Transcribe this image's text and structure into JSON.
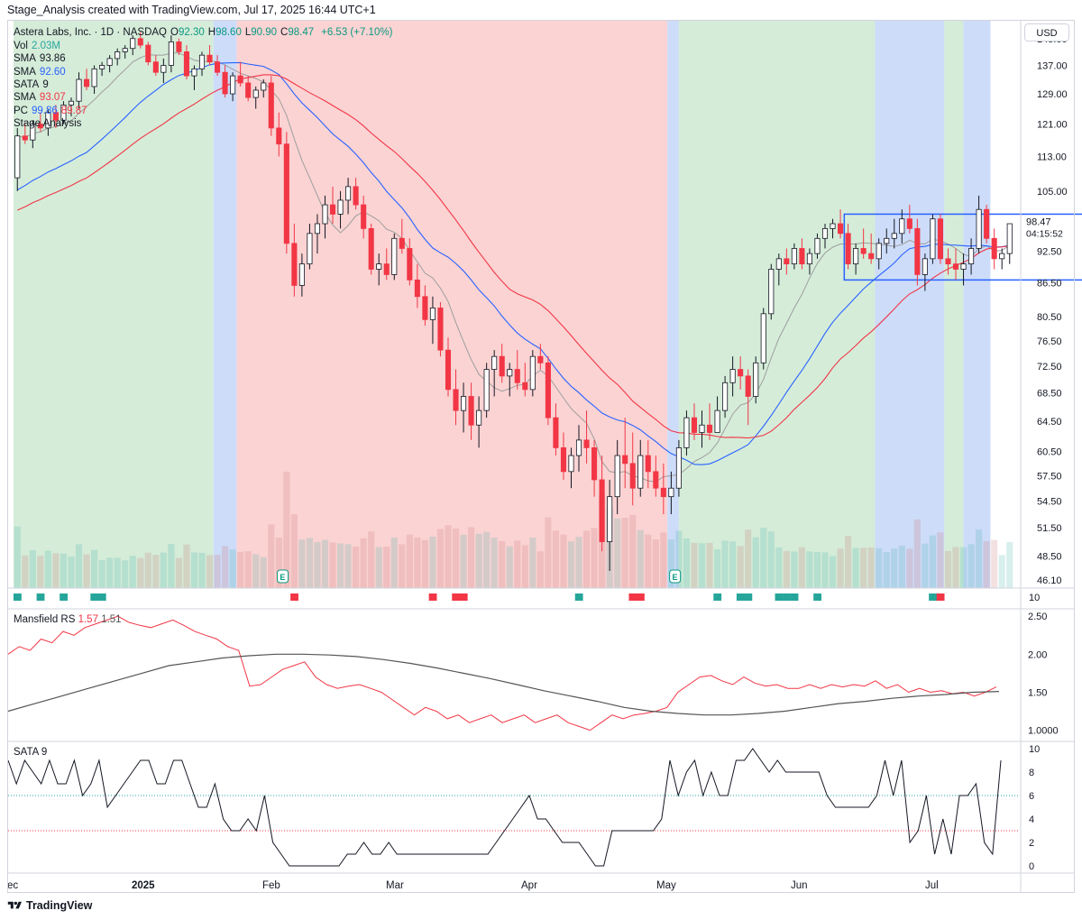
{
  "header": {
    "attribution": "Stage_Analysis created with TradingView.com, Jul 17, 2025 16:44 UTC+1"
  },
  "currency_button": "USD",
  "footer": {
    "brand": "TradingView"
  },
  "legend": {
    "symbol": "Astera Labs, Inc. · 1D · NASDAQ",
    "ohlc": [
      {
        "k": "O",
        "v": "92.30"
      },
      {
        "k": "H",
        "v": "98.60"
      },
      {
        "k": "L",
        "v": "90.90"
      },
      {
        "k": "C",
        "v": "98.47"
      }
    ],
    "change": "+6.53 (+7.10%)",
    "rows": [
      {
        "name": "Vol",
        "values": [
          "2.03M"
        ],
        "colors": [
          "#26a69a"
        ]
      },
      {
        "name": "SMA",
        "values": [
          "93.86"
        ],
        "colors": [
          "#131722"
        ]
      },
      {
        "name": "SMA",
        "values": [
          "92.60"
        ],
        "colors": [
          "#2962ff"
        ]
      },
      {
        "name": "SATA",
        "values": [
          "9"
        ],
        "colors": [
          "#131722"
        ]
      },
      {
        "name": "SMA",
        "values": [
          "93.07"
        ],
        "colors": [
          "#f23645"
        ]
      },
      {
        "name": "PC",
        "values": [
          "99.86",
          "89.87"
        ],
        "colors": [
          "#2962ff",
          "#f23645"
        ]
      },
      {
        "name": "Stage Analysis",
        "values": [],
        "colors": []
      }
    ],
    "earnings_marker": "E"
  },
  "colors": {
    "bull": "#ffffff",
    "bear": "#f23645",
    "wick": "#131722",
    "stage_green": "#d5ecd9",
    "stage_red": "#fbd3d3",
    "stage_blue": "#cddcf9",
    "sma_gray": "#9e9e9e",
    "sma_blue": "#2962ff",
    "sma_red": "#f23645",
    "rs_line": "#f23645",
    "rs_ma": "#555555",
    "box": "#2962ff"
  },
  "chart_data": [
    {
      "type": "candlestick",
      "name": "ALAB 1D",
      "x_axis_labels": [
        "ec",
        "2025",
        "Feb",
        "Mar",
        "Apr",
        "May",
        "Jun",
        "Jul"
      ],
      "y_axis_labels": [
        "145.00",
        "137.00",
        "129.00",
        "121.00",
        "113.00",
        "105.00",
        "98.47",
        "92.50",
        "86.50",
        "80.50",
        "76.50",
        "72.50",
        "68.50",
        "64.50",
        "60.50",
        "57.50",
        "54.50",
        "51.50",
        "48.50",
        "46.10"
      ],
      "last_price": "98.47",
      "countdown": "04:15:52",
      "ylim": [
        45,
        150
      ],
      "scale": "log",
      "candles": [
        [
          108,
          120,
          105,
          118
        ],
        [
          118,
          121,
          116,
          117
        ],
        [
          117,
          122,
          115,
          121
        ],
        [
          121,
          124,
          119,
          120
        ],
        [
          120,
          125,
          118,
          124
        ],
        [
          124,
          126,
          120,
          122
        ],
        [
          122,
          127,
          121,
          126
        ],
        [
          126,
          128,
          123,
          127
        ],
        [
          127,
          135,
          125,
          133
        ],
        [
          133,
          136,
          130,
          131
        ],
        [
          131,
          137,
          129,
          136
        ],
        [
          136,
          138,
          134,
          137
        ],
        [
          137,
          140,
          135,
          139
        ],
        [
          139,
          142,
          137,
          141
        ],
        [
          141,
          143,
          139,
          142
        ],
        [
          142,
          146,
          140,
          145
        ],
        [
          145,
          147,
          142,
          143
        ],
        [
          143,
          144,
          137,
          138
        ],
        [
          138,
          140,
          134,
          135
        ],
        [
          135,
          139,
          132,
          137
        ],
        [
          137,
          146,
          135,
          144
        ],
        [
          144,
          145,
          140,
          141
        ],
        [
          141,
          143,
          133,
          134
        ],
        [
          134,
          137,
          130,
          136
        ],
        [
          136,
          141,
          134,
          140
        ],
        [
          140,
          143,
          137,
          138
        ],
        [
          138,
          140,
          134,
          135
        ],
        [
          135,
          137,
          128,
          129
        ],
        [
          129,
          135,
          127,
          134
        ],
        [
          134,
          138,
          131,
          132
        ],
        [
          132,
          134,
          127,
          128
        ],
        [
          128,
          131,
          125,
          130
        ],
        [
          130,
          133,
          128,
          132
        ],
        [
          132,
          134,
          118,
          120
        ],
        [
          120,
          124,
          113,
          116
        ],
        [
          116,
          119,
          92,
          94
        ],
        [
          94,
          98,
          84,
          86
        ],
        [
          86,
          92,
          84,
          90
        ],
        [
          90,
          98,
          89,
          96
        ],
        [
          96,
          100,
          92,
          98
        ],
        [
          98,
          104,
          95,
          102
        ],
        [
          102,
          106,
          98,
          100
        ],
        [
          100,
          105,
          97,
          103
        ],
        [
          103,
          108,
          100,
          106
        ],
        [
          106,
          108,
          101,
          102
        ],
        [
          102,
          104,
          95,
          97
        ],
        [
          97,
          98,
          88,
          89
        ],
        [
          89,
          92,
          86,
          90
        ],
        [
          90,
          93,
          87,
          88
        ],
        [
          88,
          96,
          87,
          95
        ],
        [
          95,
          99,
          92,
          93
        ],
        [
          93,
          95,
          86,
          87
        ],
        [
          87,
          90,
          82,
          84
        ],
        [
          84,
          86,
          79,
          80
        ],
        [
          80,
          84,
          76,
          82
        ],
        [
          82,
          83,
          74,
          75
        ],
        [
          75,
          77,
          68,
          69
        ],
        [
          69,
          72,
          64,
          66
        ],
        [
          66,
          70,
          63,
          68
        ],
        [
          68,
          70,
          62,
          64
        ],
        [
          64,
          68,
          61,
          66
        ],
        [
          66,
          73,
          65,
          72
        ],
        [
          72,
          75,
          68,
          74
        ],
        [
          74,
          76,
          70,
          71
        ],
        [
          71,
          73,
          68,
          72
        ],
        [
          72,
          75,
          69,
          70
        ],
        [
          70,
          73,
          68,
          69
        ],
        [
          69,
          75,
          68,
          74
        ],
        [
          74,
          76,
          72,
          73
        ],
        [
          73,
          74,
          64,
          65
        ],
        [
          65,
          67,
          60,
          61
        ],
        [
          61,
          63,
          57,
          58
        ],
        [
          58,
          61,
          56,
          60
        ],
        [
          60,
          64,
          58,
          62
        ],
        [
          62,
          66,
          59,
          61
        ],
        [
          61,
          62,
          55,
          57
        ],
        [
          57,
          60,
          49,
          50
        ],
        [
          50,
          57,
          47,
          55
        ],
        [
          55,
          62,
          53,
          60
        ],
        [
          60,
          65,
          56,
          59
        ],
        [
          59,
          63,
          54,
          56
        ],
        [
          56,
          62,
          55,
          60
        ],
        [
          60,
          62,
          56,
          58
        ],
        [
          58,
          60,
          55,
          56
        ],
        [
          56,
          59,
          53,
          55
        ],
        [
          55,
          58,
          53,
          56
        ],
        [
          56,
          62,
          55,
          61
        ],
        [
          61,
          66,
          60,
          65
        ],
        [
          65,
          67,
          62,
          63
        ],
        [
          63,
          66,
          61,
          64
        ],
        [
          64,
          67,
          62,
          63
        ],
        [
          63,
          68,
          64,
          66
        ],
        [
          66,
          71,
          65,
          70
        ],
        [
          70,
          74,
          68,
          72
        ],
        [
          72,
          74,
          69,
          71
        ],
        [
          71,
          72,
          64,
          68
        ],
        [
          68,
          74,
          67,
          73
        ],
        [
          73,
          82,
          72,
          81
        ],
        [
          81,
          90,
          80,
          89
        ],
        [
          89,
          92,
          86,
          91
        ],
        [
          91,
          93,
          88,
          90
        ],
        [
          90,
          94,
          89,
          93
        ],
        [
          93,
          95,
          89,
          90
        ],
        [
          90,
          93,
          88,
          92
        ],
        [
          92,
          96,
          91,
          95
        ],
        [
          95,
          98,
          93,
          97
        ],
        [
          97,
          99,
          95,
          98
        ],
        [
          98,
          101,
          95,
          96
        ],
        [
          96,
          98,
          89,
          90
        ],
        [
          90,
          94,
          88,
          93
        ],
        [
          93,
          97,
          91,
          92
        ],
        [
          92,
          96,
          90,
          91
        ],
        [
          91,
          95,
          89,
          94
        ],
        [
          94,
          97,
          92,
          95
        ],
        [
          95,
          99,
          93,
          96
        ],
        [
          96,
          101,
          94,
          99
        ],
        [
          99,
          102,
          96,
          97
        ],
        [
          97,
          99,
          86,
          88
        ],
        [
          88,
          92,
          85,
          91
        ],
        [
          91,
          100,
          90,
          99
        ],
        [
          99,
          100,
          90,
          91
        ],
        [
          91,
          93,
          88,
          90
        ],
        [
          90,
          93,
          87,
          89
        ],
        [
          89,
          92,
          86,
          90
        ],
        [
          90,
          95,
          88,
          93
        ],
        [
          93,
          104,
          92,
          101
        ],
        [
          101,
          102,
          94,
          95
        ],
        [
          95,
          97,
          89,
          91
        ],
        [
          91,
          93,
          89,
          92
        ],
        [
          92,
          98,
          90,
          98
        ]
      ],
      "box": {
        "x_from_index": 108,
        "x_to_index": 139,
        "top": 100,
        "bottom": 87
      }
    },
    {
      "type": "line",
      "name": "Mansfield RS",
      "legend_values": [
        "1.57",
        "1.51"
      ],
      "y_axis_labels": [
        "2.50",
        "2.00",
        "1.50",
        "1.0000"
      ],
      "ylim": [
        0.9,
        2.55
      ],
      "series": [
        {
          "name": "Mansfield RS",
          "values": [
            2.0,
            2.1,
            2.05,
            2.2,
            2.15,
            2.3,
            2.25,
            2.35,
            2.4,
            2.45,
            2.5,
            2.42,
            2.38,
            2.35,
            2.4,
            2.45,
            2.38,
            2.3,
            2.25,
            2.2,
            2.1,
            2.05,
            1.58,
            1.6,
            1.7,
            1.8,
            1.85,
            1.9,
            1.7,
            1.6,
            1.55,
            1.58,
            1.6,
            1.55,
            1.5,
            1.4,
            1.3,
            1.2,
            1.3,
            1.25,
            1.15,
            1.2,
            1.1,
            1.15,
            1.2,
            1.1,
            1.15,
            1.2,
            1.1,
            1.15,
            1.2,
            1.1,
            1.05,
            1.0,
            1.1,
            1.2,
            1.15,
            1.2,
            1.22,
            1.25,
            1.3,
            1.5,
            1.6,
            1.7,
            1.72,
            1.65,
            1.6,
            1.7,
            1.62,
            1.58,
            1.6,
            1.55,
            1.55,
            1.6,
            1.55,
            1.6,
            1.57,
            1.6,
            1.58,
            1.65,
            1.55,
            1.6,
            1.5,
            1.55,
            1.5,
            1.52,
            1.48,
            1.5,
            1.45,
            1.5,
            1.57
          ]
        },
        {
          "name": "MA",
          "values": [
            1.25,
            1.35,
            1.45,
            1.55,
            1.65,
            1.75,
            1.85,
            1.9,
            1.95,
            1.98,
            2.0,
            2.0,
            1.99,
            1.97,
            1.93,
            1.88,
            1.82,
            1.75,
            1.68,
            1.6,
            1.52,
            1.45,
            1.38,
            1.3,
            1.25,
            1.22,
            1.2,
            1.2,
            1.22,
            1.25,
            1.3,
            1.35,
            1.38,
            1.42,
            1.45,
            1.47,
            1.5,
            1.51
          ]
        }
      ]
    },
    {
      "type": "line",
      "name": "SATA",
      "legend_value": "9",
      "y_axis_labels": [
        "10",
        "8",
        "6",
        "4",
        "2",
        "0"
      ],
      "ylim": [
        0,
        10
      ],
      "reference_lines": [
        6,
        3
      ],
      "values": [
        9,
        7,
        9,
        8,
        7,
        9,
        7,
        7,
        9,
        6,
        7,
        9,
        5,
        6,
        7,
        8,
        9,
        9,
        7,
        7,
        9,
        9,
        7,
        5,
        5,
        7,
        4,
        3,
        3,
        4,
        3,
        6,
        2,
        1,
        0,
        0,
        0,
        0,
        0,
        0,
        0,
        1,
        1,
        2,
        1,
        1,
        2,
        1,
        1,
        1,
        1,
        1,
        1,
        1,
        1,
        1,
        1,
        1,
        1,
        2,
        3,
        4,
        5,
        6,
        4,
        4,
        3,
        2,
        2,
        2,
        1,
        0,
        0,
        3,
        3,
        3,
        3,
        3,
        3,
        4,
        9,
        6,
        8,
        9,
        6,
        8,
        6,
        6,
        9,
        9,
        10,
        9,
        8,
        9,
        8,
        8,
        8,
        8,
        8,
        6,
        5,
        5,
        5,
        5,
        5,
        6,
        9,
        6,
        9,
        2,
        3,
        6,
        1,
        4,
        1,
        6,
        6,
        7,
        2,
        1,
        9
      ]
    }
  ]
}
